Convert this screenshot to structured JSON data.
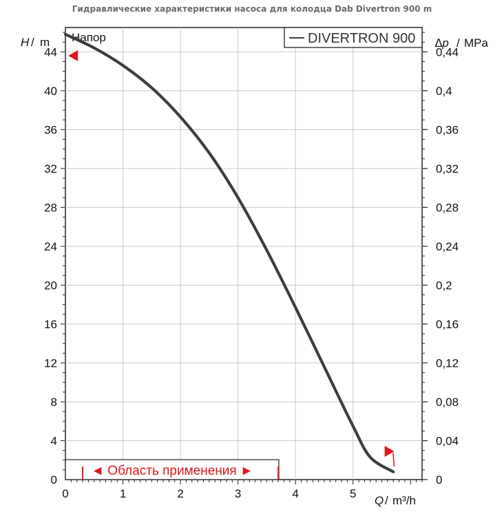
{
  "chart_data": {
    "type": "line",
    "title": "Гидравлические характеристики насоса для колодца Dab Divertron 900 m",
    "curve_label": "Напор",
    "legend": {
      "entry": "DIVERTRON 900",
      "placement": "top-right"
    },
    "y_left": {
      "symbol": "H",
      "unit": "m",
      "range": [
        0,
        46.5
      ],
      "ticks": [
        0,
        4,
        8,
        12,
        16,
        20,
        24,
        28,
        32,
        36,
        40,
        44
      ]
    },
    "y_right": {
      "symbol": "∆p",
      "unit": "MPa",
      "range": [
        0,
        0.465
      ],
      "ticks": [
        "0",
        "0,04",
        "0,08",
        "0,12",
        "0,16",
        "0,2",
        "0,24",
        "0,28",
        "0,32",
        "0,36",
        "0,4",
        "0,44"
      ]
    },
    "x": {
      "symbol": "Q",
      "unit": "m³/h",
      "range": [
        0,
        6.2
      ],
      "ticks": [
        0,
        1,
        2,
        3,
        4,
        5
      ]
    },
    "grid": true,
    "series": [
      {
        "name": "DIVERTRON 900",
        "color": "#3a3d42",
        "points": [
          [
            0,
            45.8
          ],
          [
            0.5,
            44.4
          ],
          [
            1,
            42.6
          ],
          [
            1.5,
            40.3
          ],
          [
            2,
            37.3
          ],
          [
            2.5,
            33.6
          ],
          [
            3,
            29.0
          ],
          [
            3.5,
            23.6
          ],
          [
            4,
            17.7
          ],
          [
            4.5,
            11.6
          ],
          [
            5,
            5.5
          ],
          [
            5.3,
            2.3
          ],
          [
            5.7,
            0.8
          ]
        ]
      }
    ],
    "operating_range": {
      "label": "◄ Область применения ►",
      "q_min": 0.3,
      "q_max": 3.7,
      "color": "#e0161e"
    },
    "markers": [
      {
        "label": "",
        "x": 0.05,
        "y": 43.6,
        "direction": "left",
        "color": "#e0161e"
      },
      {
        "label": "",
        "x": 5.55,
        "y": 2.9,
        "direction": "right",
        "color": "#e0161e"
      }
    ]
  }
}
